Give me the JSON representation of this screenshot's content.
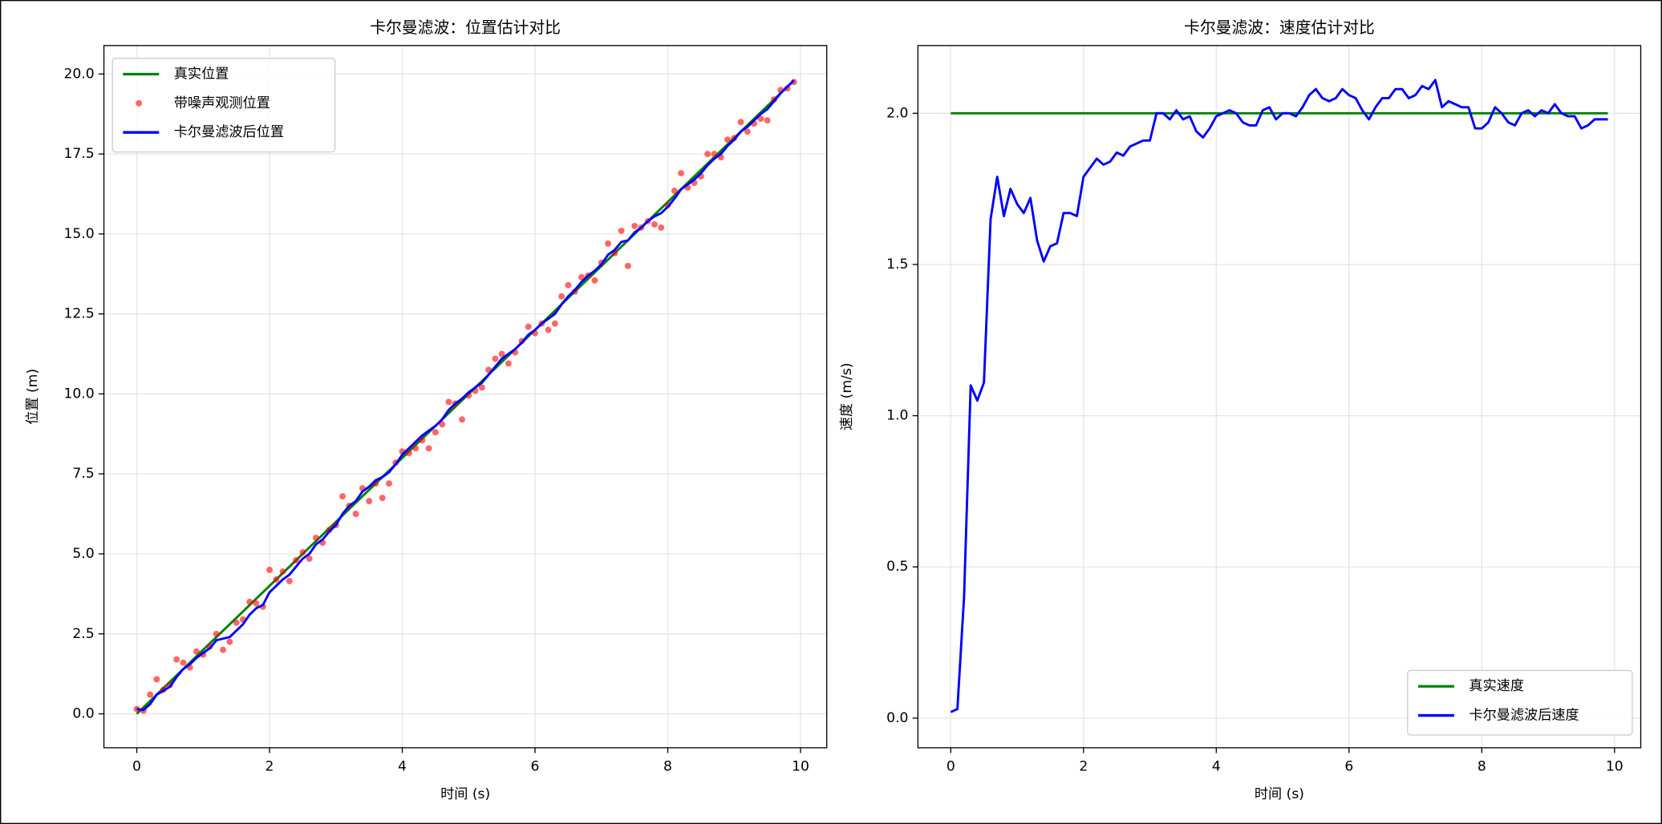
{
  "chart_data": [
    {
      "type": "line",
      "title": "卡尔曼滤波：位置估计对比",
      "xlabel": "时间 (s)",
      "ylabel": "位置 (m)",
      "x": [
        0,
        0.1,
        0.2,
        0.3,
        0.4,
        0.5,
        0.6,
        0.7,
        0.8,
        0.9,
        1,
        1.1,
        1.2,
        1.3,
        1.4,
        1.5,
        1.6,
        1.7,
        1.8,
        1.9,
        2,
        2.1,
        2.2,
        2.3,
        2.4,
        2.5,
        2.6,
        2.7,
        2.8,
        2.9,
        3,
        3.1,
        3.2,
        3.3,
        3.4,
        3.5,
        3.6,
        3.7,
        3.8,
        3.9,
        4,
        4.1,
        4.2,
        4.3,
        4.4,
        4.5,
        4.6,
        4.7,
        4.8,
        4.9,
        5,
        5.1,
        5.2,
        5.3,
        5.4,
        5.5,
        5.6,
        5.7,
        5.8,
        5.9,
        6,
        6.1,
        6.2,
        6.3,
        6.4,
        6.5,
        6.6,
        6.7,
        6.8,
        6.9,
        7,
        7.1,
        7.2,
        7.3,
        7.4,
        7.5,
        7.6,
        7.7,
        7.8,
        7.9,
        8,
        8.1,
        8.2,
        8.3,
        8.4,
        8.5,
        8.6,
        8.7,
        8.8,
        8.9,
        9,
        9.1,
        9.2,
        9.3,
        9.4,
        9.5,
        9.6,
        9.7,
        9.8,
        9.9
      ],
      "series": [
        {
          "name": "真实位置",
          "color": "green",
          "mark": "line",
          "x": [
            0,
            9.9
          ],
          "values": [
            0,
            19.8
          ]
        },
        {
          "name": "带噪声观测位置",
          "color": "red",
          "mark": "scatter",
          "alpha": 0.6,
          "values": [
            0.15,
            0.1,
            0.6,
            1.08,
            0.75,
            0.9,
            1.7,
            1.6,
            1.45,
            1.95,
            1.85,
            2.1,
            2.5,
            2.0,
            2.25,
            2.85,
            2.95,
            3.5,
            3.45,
            3.35,
            4.5,
            4.2,
            4.45,
            4.15,
            4.8,
            5.05,
            4.85,
            5.5,
            5.35,
            5.75,
            5.9,
            6.8,
            6.5,
            6.25,
            7.05,
            6.65,
            7.2,
            6.75,
            7.2,
            7.85,
            8.2,
            8.15,
            8.3,
            8.55,
            8.3,
            8.8,
            9.05,
            9.75,
            9.7,
            9.2,
            9.95,
            10.1,
            10.2,
            10.75,
            11.1,
            11.25,
            10.95,
            11.3,
            11.65,
            12.1,
            11.9,
            12.2,
            12.0,
            12.2,
            13.05,
            13.4,
            13.2,
            13.65,
            13.7,
            13.55,
            14.1,
            14.7,
            14.4,
            15.1,
            14.0,
            15.25,
            15.2,
            15.4,
            15.3,
            15.2,
            15.9,
            16.35,
            16.9,
            16.45,
            16.6,
            16.8,
            17.5,
            17.5,
            17.4,
            17.95,
            18.0,
            18.5,
            18.2,
            18.45,
            18.6,
            18.55,
            19.2,
            19.5,
            19.55,
            19.75
          ]
        },
        {
          "name": "卡尔曼滤波后位置",
          "color": "blue",
          "mark": "line",
          "values": [
            0.15,
            0.12,
            0.3,
            0.6,
            0.72,
            0.85,
            1.15,
            1.4,
            1.55,
            1.75,
            1.9,
            2.05,
            2.3,
            2.35,
            2.4,
            2.6,
            2.8,
            3.1,
            3.3,
            3.4,
            3.8,
            4.0,
            4.2,
            4.35,
            4.6,
            4.85,
            5.0,
            5.3,
            5.45,
            5.7,
            5.9,
            6.25,
            6.5,
            6.65,
            6.95,
            7.1,
            7.3,
            7.4,
            7.55,
            7.8,
            8.1,
            8.3,
            8.5,
            8.7,
            8.85,
            9.0,
            9.2,
            9.5,
            9.7,
            9.85,
            10.05,
            10.2,
            10.35,
            10.6,
            10.85,
            11.1,
            11.25,
            11.4,
            11.6,
            11.85,
            12.0,
            12.2,
            12.35,
            12.5,
            12.8,
            13.05,
            13.25,
            13.5,
            13.7,
            13.85,
            14.05,
            14.35,
            14.5,
            14.75,
            14.8,
            15.05,
            15.2,
            15.4,
            15.55,
            15.65,
            15.85,
            16.1,
            16.4,
            16.55,
            16.7,
            16.9,
            17.15,
            17.35,
            17.5,
            17.75,
            17.95,
            18.2,
            18.35,
            18.55,
            18.75,
            18.9,
            19.15,
            19.4,
            19.6,
            19.8
          ]
        }
      ],
      "xlim": [
        -0.495,
        10.395
      ],
      "ylim": [
        -1.06,
        20.89
      ],
      "xticks": [
        0,
        2,
        4,
        6,
        8,
        10
      ],
      "yticks": [
        {
          "value": 0,
          "label": "0.0"
        },
        2.5,
        {
          "value": 5,
          "label": "5.0"
        },
        7.5,
        {
          "value": 10,
          "label": "10.0"
        },
        12.5,
        {
          "value": 15,
          "label": "15.0"
        },
        17.5,
        {
          "value": 20,
          "label": "20.0"
        }
      ],
      "grid": true,
      "legend": "upper-left"
    },
    {
      "type": "line",
      "title": "卡尔曼滤波：速度估计对比",
      "xlabel": "时间 (s)",
      "ylabel": "速度 (m/s)",
      "x": [
        0,
        0.1,
        0.2,
        0.3,
        0.4,
        0.5,
        0.6,
        0.7,
        0.8,
        0.9,
        1,
        1.1,
        1.2,
        1.3,
        1.4,
        1.5,
        1.6,
        1.7,
        1.8,
        1.9,
        2,
        2.1,
        2.2,
        2.3,
        2.4,
        2.5,
        2.6,
        2.7,
        2.8,
        2.9,
        3,
        3.1,
        3.2,
        3.3,
        3.4,
        3.5,
        3.6,
        3.7,
        3.8,
        3.9,
        4,
        4.1,
        4.2,
        4.3,
        4.4,
        4.5,
        4.6,
        4.7,
        4.8,
        4.9,
        5,
        5.1,
        5.2,
        5.3,
        5.4,
        5.5,
        5.6,
        5.7,
        5.8,
        5.9,
        6,
        6.1,
        6.2,
        6.3,
        6.4,
        6.5,
        6.6,
        6.7,
        6.8,
        6.9,
        7,
        7.1,
        7.2,
        7.3,
        7.4,
        7.5,
        7.6,
        7.7,
        7.8,
        7.9,
        8,
        8.1,
        8.2,
        8.3,
        8.4,
        8.5,
        8.6,
        8.7,
        8.8,
        8.9,
        9,
        9.1,
        9.2,
        9.3,
        9.4,
        9.5,
        9.6,
        9.7,
        9.8,
        9.9
      ],
      "series": [
        {
          "name": "真实速度",
          "color": "green",
          "mark": "line",
          "x": [
            0,
            9.9
          ],
          "values": [
            2,
            2
          ]
        },
        {
          "name": "卡尔曼滤波后速度",
          "color": "blue",
          "mark": "line",
          "values": [
            0.02,
            0.03,
            0.4,
            1.1,
            1.05,
            1.11,
            1.65,
            1.79,
            1.66,
            1.75,
            1.7,
            1.67,
            1.72,
            1.58,
            1.51,
            1.56,
            1.57,
            1.67,
            1.67,
            1.66,
            1.79,
            1.82,
            1.85,
            1.83,
            1.84,
            1.87,
            1.86,
            1.89,
            1.9,
            1.91,
            1.91,
            2.0,
            2.0,
            1.98,
            2.01,
            1.98,
            1.99,
            1.94,
            1.92,
            1.95,
            1.99,
            2.0,
            2.01,
            2.0,
            1.97,
            1.96,
            1.96,
            2.01,
            2.02,
            1.98,
            2.0,
            2.0,
            1.99,
            2.02,
            2.06,
            2.08,
            2.05,
            2.04,
            2.05,
            2.08,
            2.06,
            2.05,
            2.01,
            1.98,
            2.02,
            2.05,
            2.05,
            2.08,
            2.08,
            2.05,
            2.06,
            2.09,
            2.08,
            2.11,
            2.02,
            2.04,
            2.03,
            2.02,
            2.02,
            1.95,
            1.95,
            1.97,
            2.02,
            2.0,
            1.97,
            1.96,
            2.0,
            2.01,
            1.99,
            2.01,
            2.0,
            2.03,
            2.0,
            1.99,
            1.99,
            1.95,
            1.96,
            1.98,
            1.98,
            1.98
          ]
        }
      ],
      "xlim": [
        -0.495,
        10.395
      ],
      "ylim": [
        -0.098,
        2.224
      ],
      "xticks": [
        0,
        2,
        4,
        6,
        8,
        10
      ],
      "yticks": [
        {
          "value": 0,
          "label": "0.0"
        },
        0.5,
        {
          "value": 1,
          "label": "1.0"
        },
        1.5,
        {
          "value": 2,
          "label": "2.0"
        }
      ],
      "grid": true,
      "legend": "lower-right"
    }
  ]
}
